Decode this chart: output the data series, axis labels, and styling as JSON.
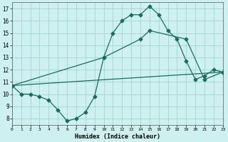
{
  "xlabel": "Humidex (Indice chaleur)",
  "bg_color": "#cff0f0",
  "grid_color": "#a8d8d8",
  "line_color": "#1a6b60",
  "xlim": [
    0,
    23
  ],
  "ylim": [
    7.5,
    17.5
  ],
  "xticks": [
    0,
    1,
    2,
    3,
    4,
    5,
    6,
    7,
    8,
    9,
    10,
    11,
    12,
    13,
    14,
    15,
    16,
    17,
    18,
    19,
    20,
    21,
    22,
    23
  ],
  "yticks": [
    8,
    9,
    10,
    11,
    12,
    13,
    14,
    15,
    16,
    17
  ],
  "series1_x": [
    0,
    1,
    2,
    3,
    4,
    5,
    6,
    7,
    8,
    9,
    10,
    11,
    12,
    13,
    14,
    15,
    16,
    17,
    18,
    19,
    20,
    21,
    22,
    23
  ],
  "series1_y": [
    10.7,
    10.0,
    10.0,
    9.8,
    9.5,
    8.7,
    7.8,
    8.0,
    8.5,
    9.8,
    13.0,
    15.0,
    16.0,
    16.5,
    16.5,
    17.2,
    16.5,
    15.2,
    14.5,
    12.7,
    11.2,
    11.5,
    12.0,
    11.8
  ],
  "series2_x": [
    0,
    10,
    14,
    15,
    19,
    21,
    23
  ],
  "series2_y": [
    10.7,
    13.0,
    14.5,
    15.2,
    14.5,
    11.2,
    11.8
  ],
  "series3_x": [
    0,
    23
  ],
  "series3_y": [
    10.7,
    11.8
  ],
  "markersize": 2.5
}
